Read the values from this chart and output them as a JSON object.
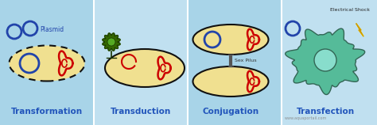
{
  "bg_color": "#a8d4e8",
  "bg_color_light": "#c0e0f0",
  "cell_color": "#f0e090",
  "cell_edge": "#111111",
  "dna_color": "#cc0000",
  "plasmid_color": "#2244aa",
  "phage_color": "#336600",
  "animal_cell_color": "#55bb99",
  "titles": [
    "Transformation",
    "Transduction",
    "Conjugation",
    "Transfection"
  ],
  "plasmid_label": "Plasmid",
  "sexpilus_label": "Sex Pilus",
  "shock_label": "Electrical Shock",
  "watermark": "www.aquaportail.com",
  "title_fontsize": 7.5,
  "label_fontsize": 5
}
